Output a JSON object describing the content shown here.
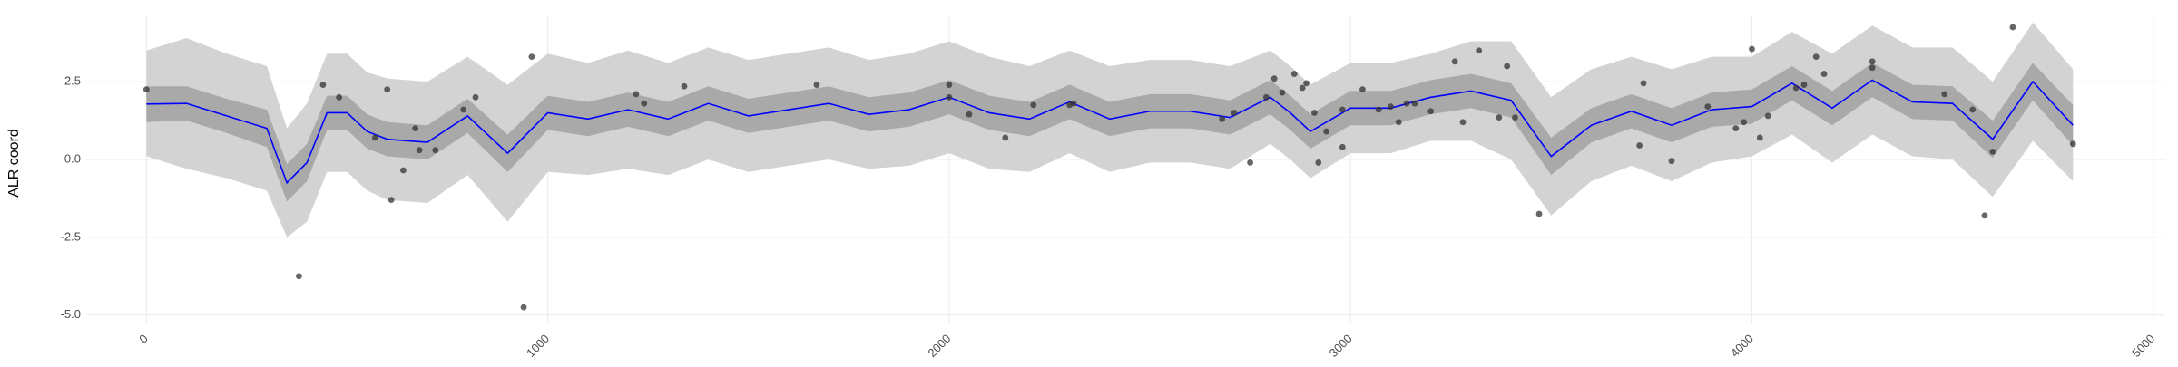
{
  "chart_data": {
    "type": "line",
    "y_label": "ALR coord",
    "xlim": [
      -150,
      5030
    ],
    "ylim": [
      -5.3,
      4.6
    ],
    "xticks": [
      0,
      1000,
      2000,
      3000,
      4000,
      5000
    ],
    "yticks": [
      {
        "value": -5,
        "label": "-5.0"
      },
      {
        "value": -2.5,
        "label": "-2.5"
      },
      {
        "value": 0,
        "label": "0.0"
      },
      {
        "value": 2.5,
        "label": "2.5"
      }
    ],
    "grid": true,
    "color": "#0000ff",
    "inner_band_color": "#a9a9a9",
    "outer_band_color": "#d3d3d3",
    "point_color": "#333333",
    "x": [
      0,
      100,
      200,
      300,
      350,
      400,
      450,
      500,
      550,
      600,
      700,
      800,
      900,
      1000,
      1100,
      1200,
      1300,
      1400,
      1500,
      1600,
      1700,
      1800,
      1900,
      2000,
      2100,
      2200,
      2300,
      2400,
      2500,
      2600,
      2700,
      2800,
      2850,
      2900,
      3000,
      3100,
      3200,
      3300,
      3400,
      3500,
      3600,
      3700,
      3800,
      3900,
      4000,
      4100,
      4200,
      4300,
      4400,
      4500,
      4600,
      4700,
      4800
    ],
    "values": [
      1.78,
      1.8,
      1.4,
      1.0,
      -0.75,
      -0.1,
      1.5,
      1.5,
      0.9,
      0.65,
      0.55,
      1.4,
      0.2,
      1.5,
      1.3,
      1.6,
      1.3,
      1.8,
      1.4,
      1.6,
      1.8,
      1.45,
      1.6,
      2.0,
      1.5,
      1.3,
      1.85,
      1.3,
      1.55,
      1.55,
      1.35,
      2.0,
      1.5,
      0.9,
      1.65,
      1.65,
      2.0,
      2.2,
      1.9,
      0.1,
      1.1,
      1.55,
      1.1,
      1.6,
      1.7,
      2.45,
      1.65,
      2.55,
      1.85,
      1.8,
      0.65,
      2.5,
      1.1
    ],
    "inner_band": {
      "lower": [
        1.2,
        1.25,
        0.85,
        0.4,
        -1.35,
        -0.7,
        0.95,
        0.95,
        0.35,
        0.1,
        0.0,
        0.85,
        -0.4,
        0.95,
        0.75,
        1.05,
        0.75,
        1.25,
        0.85,
        1.05,
        1.25,
        0.9,
        1.05,
        1.45,
        0.95,
        0.75,
        1.3,
        0.75,
        1.0,
        1.0,
        0.8,
        1.45,
        0.95,
        0.35,
        1.1,
        1.1,
        1.45,
        1.65,
        1.35,
        -0.5,
        0.55,
        1.0,
        0.55,
        1.05,
        1.15,
        1.9,
        1.1,
        2.0,
        1.3,
        1.25,
        0.05,
        1.9,
        0.45
      ],
      "upper": [
        2.35,
        2.35,
        1.95,
        1.6,
        -0.15,
        0.5,
        2.05,
        2.05,
        1.45,
        1.2,
        1.1,
        1.95,
        0.8,
        2.05,
        1.85,
        2.15,
        1.85,
        2.35,
        1.95,
        2.15,
        2.35,
        2.0,
        2.15,
        2.55,
        2.05,
        1.85,
        2.4,
        1.85,
        2.1,
        2.1,
        1.9,
        2.55,
        2.05,
        1.45,
        2.2,
        2.2,
        2.55,
        2.75,
        2.45,
        0.7,
        1.65,
        2.1,
        1.65,
        2.15,
        2.25,
        3.0,
        2.2,
        3.1,
        2.4,
        2.35,
        1.25,
        3.1,
        1.75
      ]
    },
    "outer_band": {
      "lower": [
        0.1,
        -0.3,
        -0.6,
        -1.0,
        -2.5,
        -2.0,
        -0.4,
        -0.4,
        -1.0,
        -1.3,
        -1.4,
        -0.5,
        -2.0,
        -0.4,
        -0.5,
        -0.3,
        -0.5,
        0.0,
        -0.4,
        -0.2,
        0.0,
        -0.3,
        -0.2,
        0.2,
        -0.3,
        -0.4,
        0.2,
        -0.4,
        -0.1,
        -0.1,
        -0.3,
        0.5,
        0.0,
        -0.6,
        0.2,
        0.2,
        0.6,
        0.6,
        0.0,
        -1.8,
        -0.7,
        -0.2,
        -0.7,
        -0.1,
        0.1,
        0.8,
        -0.1,
        0.8,
        0.1,
        0.0,
        -1.2,
        0.6,
        -0.7
      ],
      "upper": [
        3.5,
        3.9,
        3.4,
        3.0,
        1.0,
        1.8,
        3.4,
        3.4,
        2.8,
        2.6,
        2.5,
        3.3,
        2.4,
        3.4,
        3.1,
        3.5,
        3.1,
        3.6,
        3.2,
        3.4,
        3.6,
        3.2,
        3.4,
        3.8,
        3.3,
        3.0,
        3.5,
        3.0,
        3.2,
        3.2,
        3.0,
        3.5,
        3.0,
        2.4,
        3.1,
        3.1,
        3.4,
        3.8,
        3.8,
        2.0,
        2.9,
        3.3,
        2.9,
        3.3,
        3.3,
        4.1,
        3.4,
        4.3,
        3.6,
        3.6,
        2.5,
        4.4,
        2.9
      ]
    },
    "points": {
      "x": [
        0,
        380,
        440,
        480,
        570,
        600,
        610,
        640,
        670,
        680,
        720,
        790,
        820,
        940,
        960,
        1220,
        1240,
        1340,
        1670,
        2000,
        2000,
        2050,
        2140,
        2210,
        2300,
        2310,
        2680,
        2710,
        2750,
        2790,
        2810,
        2830,
        2860,
        2880,
        2890,
        2910,
        2920,
        2940,
        2980,
        2980,
        3030,
        3070,
        3100,
        3120,
        3140,
        3160,
        3200,
        3260,
        3280,
        3320,
        3370,
        3390,
        3410,
        3470,
        3720,
        3730,
        3800,
        3890,
        3960,
        3980,
        4000,
        4020,
        4040,
        4110,
        4130,
        4160,
        4180,
        4300,
        4300,
        4480,
        4550,
        4580,
        4600,
        4650,
        4800
      ],
      "y": [
        2.25,
        -3.75,
        2.4,
        2.0,
        0.7,
        2.25,
        -1.3,
        -0.35,
        1.0,
        0.3,
        0.3,
        1.6,
        2.0,
        -4.75,
        3.3,
        2.1,
        1.8,
        2.35,
        2.4,
        2.4,
        2.0,
        1.45,
        0.7,
        1.75,
        1.75,
        1.8,
        1.3,
        1.5,
        -0.1,
        2.0,
        2.6,
        2.15,
        2.75,
        2.3,
        2.45,
        1.5,
        -0.1,
        0.9,
        0.4,
        1.6,
        2.25,
        1.6,
        1.7,
        1.2,
        1.8,
        1.8,
        1.55,
        3.15,
        1.2,
        3.5,
        1.35,
        3.0,
        1.35,
        -1.75,
        0.45,
        2.45,
        -0.05,
        1.7,
        1.0,
        1.2,
        3.55,
        0.7,
        1.4,
        2.3,
        2.4,
        3.3,
        2.75,
        3.15,
        2.95,
        2.1,
        1.6,
        -1.8,
        0.25,
        4.25,
        0.5
      ]
    }
  }
}
